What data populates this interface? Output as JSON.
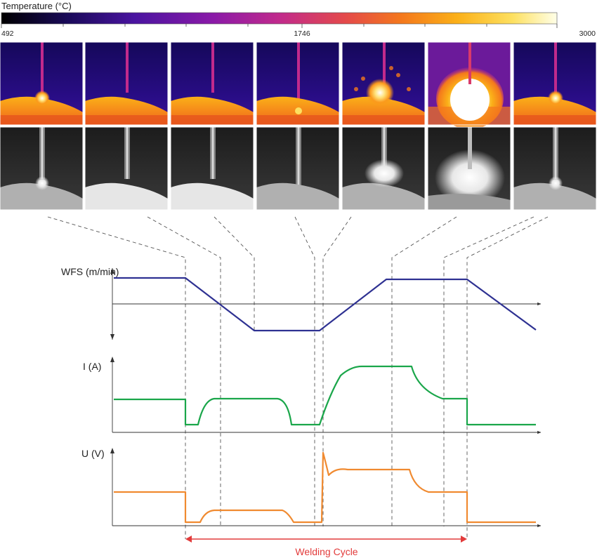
{
  "colorbar": {
    "title": "Temperature (°C)",
    "min_label": "492",
    "mid_label": "1746",
    "max_label": "3000",
    "gradient": [
      "#000000",
      "#1a0a5a",
      "#4a14a0",
      "#8a1aa8",
      "#c12a8c",
      "#e44a4a",
      "#f4781c",
      "#fbb018",
      "#fde060",
      "#ffffe8"
    ]
  },
  "frames": [
    {
      "thermal": "molten pool with glowing droplet at wire tip",
      "visible": "bright arc at wire tip"
    },
    {
      "thermal": "wire retracting, hot bead",
      "visible": "wire above bright bead"
    },
    {
      "thermal": "wire above hot bead",
      "visible": "wire above bright bead"
    },
    {
      "thermal": "short circuit necking",
      "visible": "wire touching pool, necking"
    },
    {
      "thermal": "arc re-ignition with spatter",
      "visible": "spatter burst"
    },
    {
      "thermal": "full arc, bright plume",
      "visible": "bright arc plume"
    },
    {
      "thermal": "droplet forming at wire tip",
      "visible": "droplet at tip"
    }
  ],
  "plots": {
    "wfs": {
      "label": "WFS (m/min)",
      "color": "#2e3192"
    },
    "current": {
      "label": "I (A)",
      "color": "#1aa64a"
    },
    "voltage": {
      "label": "U (V)",
      "color": "#f08a30"
    }
  },
  "welding_cycle": {
    "label": "Welding Cycle",
    "color": "#e23b3b"
  },
  "colors": {
    "axis": "#333333",
    "dashed": "#555555",
    "frame_border": "#ffffff"
  }
}
